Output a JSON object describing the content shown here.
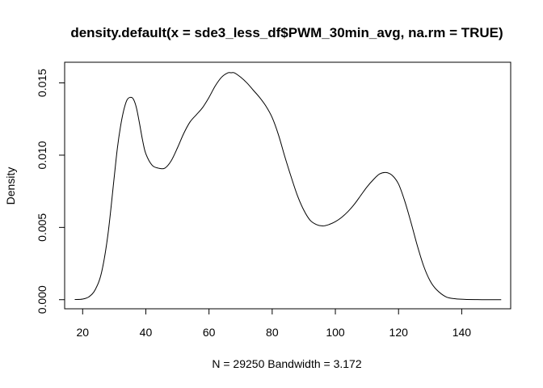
{
  "chart_data": {
    "type": "line",
    "title": "density.default(x = sde3_less_df$PWM_30min_avg, na.rm = TRUE)",
    "xlabel": "N = 29250   Bandwidth = 3.172",
    "ylabel": "Density",
    "xlim": [
      14.3,
      155.5
    ],
    "ylim": [
      -0.00063,
      0.01643
    ],
    "x_ticks": [
      "20",
      "40",
      "60",
      "80",
      "100",
      "120",
      "140"
    ],
    "y_ticks": [
      "0.000",
      "0.005",
      "0.010",
      "0.015"
    ],
    "grid": false,
    "legend": "none",
    "line_color": "#000000",
    "series": [
      {
        "x": [
          17.5,
          20,
          22,
          24,
          26,
          28,
          30,
          31,
          32,
          33,
          34,
          35,
          36,
          37,
          38,
          39,
          40,
          42,
          44,
          46,
          48,
          50,
          52,
          54,
          56,
          58,
          60,
          62,
          64,
          66,
          67,
          68,
          70,
          72,
          74,
          76,
          78,
          80,
          82,
          84,
          86,
          88,
          90,
          92,
          94,
          96,
          98,
          100,
          102,
          104,
          106,
          108,
          110,
          112,
          114,
          116,
          118,
          120,
          122,
          124,
          126,
          128,
          130,
          132,
          135,
          138,
          141,
          145,
          148,
          152.5
        ],
        "y": [
          1e-05,
          4e-05,
          0.0002,
          0.0007,
          0.0019,
          0.0045,
          0.0085,
          0.0105,
          0.012,
          0.0131,
          0.0138,
          0.014,
          0.0139,
          0.0133,
          0.0122,
          0.011,
          0.0101,
          0.0093,
          0.0091,
          0.0091,
          0.0096,
          0.0105,
          0.0115,
          0.0123,
          0.0128,
          0.0133,
          0.014,
          0.0148,
          0.0154,
          0.0157,
          0.0157,
          0.0157,
          0.0154,
          0.015,
          0.0145,
          0.014,
          0.0134,
          0.0126,
          0.0114,
          0.0099,
          0.0085,
          0.0072,
          0.0062,
          0.0055,
          0.0052,
          0.0051,
          0.0052,
          0.0054,
          0.0057,
          0.0061,
          0.0066,
          0.0072,
          0.0078,
          0.0083,
          0.0087,
          0.0088,
          0.0086,
          0.008,
          0.0068,
          0.0053,
          0.0037,
          0.0023,
          0.0013,
          0.0007,
          0.0002,
          6e-05,
          2e-05,
          5e-06,
          1e-06,
          0.0
        ]
      }
    ]
  }
}
